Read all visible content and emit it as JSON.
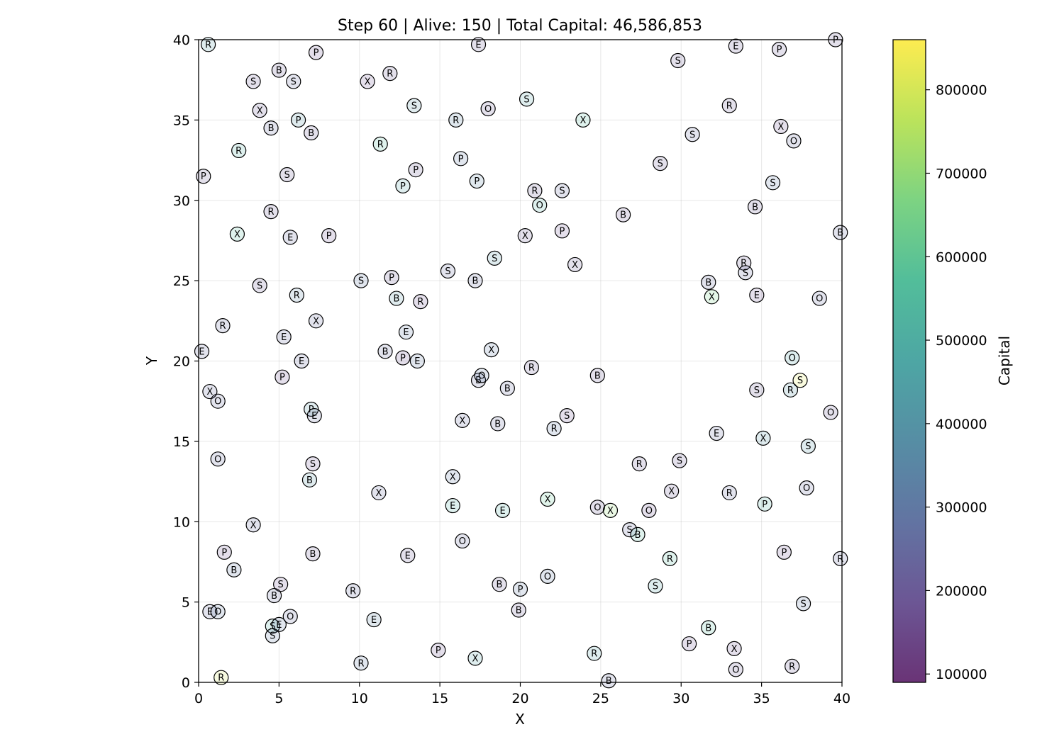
{
  "chart_data": {
    "type": "scatter",
    "title": "Step 60 | Alive: 150 | Total Capital: 46,586,853",
    "xlabel": "X",
    "ylabel": "Y",
    "xlim": [
      0,
      40
    ],
    "ylim": [
      0,
      40
    ],
    "xticks": [
      "0",
      "5",
      "10",
      "15",
      "20",
      "25",
      "30",
      "35",
      "40"
    ],
    "yticks": [
      "0",
      "5",
      "10",
      "15",
      "20",
      "25",
      "30",
      "35",
      "40"
    ],
    "grid": true,
    "colorbar": {
      "label": "Capital",
      "colormap": "viridis",
      "range": [
        90000,
        860000
      ],
      "ticks": [
        "100000",
        "200000",
        "300000",
        "400000",
        "500000",
        "600000",
        "700000",
        "800000"
      ],
      "tick_values": [
        100000,
        200000,
        300000,
        400000,
        500000,
        600000,
        700000,
        800000
      ]
    },
    "points": [
      {
        "x": 0.6,
        "y": 39.7,
        "label": "R",
        "capital": 420000
      },
      {
        "x": 7.3,
        "y": 39.2,
        "label": "P",
        "capital": 160000
      },
      {
        "x": 17.4,
        "y": 39.7,
        "label": "E",
        "capital": 200000
      },
      {
        "x": 33.4,
        "y": 39.6,
        "label": "E",
        "capital": 200000
      },
      {
        "x": 36.1,
        "y": 39.4,
        "label": "P",
        "capital": 200000
      },
      {
        "x": 39.6,
        "y": 40.0,
        "label": "P",
        "capital": 200000
      },
      {
        "x": 29.8,
        "y": 38.7,
        "label": "S",
        "capital": 200000
      },
      {
        "x": 5.0,
        "y": 38.1,
        "label": "B",
        "capital": 200000
      },
      {
        "x": 11.9,
        "y": 37.9,
        "label": "R",
        "capital": 200000
      },
      {
        "x": 3.4,
        "y": 37.4,
        "label": "S",
        "capital": 200000
      },
      {
        "x": 5.9,
        "y": 37.4,
        "label": "S",
        "capital": 250000
      },
      {
        "x": 10.5,
        "y": 37.4,
        "label": "X",
        "capital": 180000
      },
      {
        "x": 20.4,
        "y": 36.3,
        "label": "S",
        "capital": 450000
      },
      {
        "x": 13.4,
        "y": 35.9,
        "label": "S",
        "capital": 400000
      },
      {
        "x": 33.0,
        "y": 35.9,
        "label": "R",
        "capital": 200000
      },
      {
        "x": 18.0,
        "y": 35.7,
        "label": "O",
        "capital": 200000
      },
      {
        "x": 3.8,
        "y": 35.6,
        "label": "X",
        "capital": 200000
      },
      {
        "x": 16.0,
        "y": 35.0,
        "label": "R",
        "capital": 350000
      },
      {
        "x": 6.2,
        "y": 35.0,
        "label": "P",
        "capital": 400000
      },
      {
        "x": 23.9,
        "y": 35.0,
        "label": "X",
        "capital": 550000
      },
      {
        "x": 36.2,
        "y": 34.6,
        "label": "X",
        "capital": 180000
      },
      {
        "x": 4.5,
        "y": 34.5,
        "label": "B",
        "capital": 250000
      },
      {
        "x": 7.0,
        "y": 34.2,
        "label": "B",
        "capital": 200000
      },
      {
        "x": 30.7,
        "y": 34.1,
        "label": "S",
        "capital": 250000
      },
      {
        "x": 37.0,
        "y": 33.7,
        "label": "O",
        "capital": 250000
      },
      {
        "x": 11.3,
        "y": 33.5,
        "label": "R",
        "capital": 550000
      },
      {
        "x": 2.5,
        "y": 33.1,
        "label": "R",
        "capital": 500000
      },
      {
        "x": 16.3,
        "y": 32.6,
        "label": "P",
        "capital": 300000
      },
      {
        "x": 28.7,
        "y": 32.3,
        "label": "S",
        "capital": 200000
      },
      {
        "x": 13.5,
        "y": 31.9,
        "label": "P",
        "capital": 200000
      },
      {
        "x": 0.3,
        "y": 31.5,
        "label": "P",
        "capital": 200000
      },
      {
        "x": 5.5,
        "y": 31.6,
        "label": "S",
        "capital": 200000
      },
      {
        "x": 17.3,
        "y": 31.2,
        "label": "P",
        "capital": 350000
      },
      {
        "x": 35.7,
        "y": 31.1,
        "label": "S",
        "capital": 300000
      },
      {
        "x": 12.7,
        "y": 30.9,
        "label": "P",
        "capital": 450000
      },
      {
        "x": 20.9,
        "y": 30.6,
        "label": "R",
        "capital": 200000
      },
      {
        "x": 22.6,
        "y": 30.6,
        "label": "S",
        "capital": 250000
      },
      {
        "x": 21.2,
        "y": 29.7,
        "label": "O",
        "capital": 500000
      },
      {
        "x": 34.6,
        "y": 29.6,
        "label": "B",
        "capital": 200000
      },
      {
        "x": 4.5,
        "y": 29.3,
        "label": "R",
        "capital": 200000
      },
      {
        "x": 26.4,
        "y": 29.1,
        "label": "B",
        "capital": 180000
      },
      {
        "x": 39.9,
        "y": 28.0,
        "label": "B",
        "capital": 250000
      },
      {
        "x": 2.4,
        "y": 27.9,
        "label": "X",
        "capital": 550000
      },
      {
        "x": 22.6,
        "y": 28.1,
        "label": "P",
        "capital": 180000
      },
      {
        "x": 8.1,
        "y": 27.8,
        "label": "P",
        "capital": 180000
      },
      {
        "x": 5.7,
        "y": 27.7,
        "label": "E",
        "capital": 250000
      },
      {
        "x": 20.3,
        "y": 27.8,
        "label": "X",
        "capital": 200000
      },
      {
        "x": 18.4,
        "y": 26.4,
        "label": "S",
        "capital": 400000
      },
      {
        "x": 33.9,
        "y": 26.1,
        "label": "R",
        "capital": 200000
      },
      {
        "x": 23.4,
        "y": 26.0,
        "label": "X",
        "capital": 200000
      },
      {
        "x": 15.5,
        "y": 25.6,
        "label": "S",
        "capital": 250000
      },
      {
        "x": 34.0,
        "y": 25.5,
        "label": "S",
        "capital": 250000
      },
      {
        "x": 12.0,
        "y": 25.2,
        "label": "P",
        "capital": 200000
      },
      {
        "x": 17.2,
        "y": 25.0,
        "label": "B",
        "capital": 250000
      },
      {
        "x": 10.1,
        "y": 25.0,
        "label": "S",
        "capital": 300000
      },
      {
        "x": 31.7,
        "y": 24.9,
        "label": "B",
        "capital": 250000
      },
      {
        "x": 3.8,
        "y": 24.7,
        "label": "S",
        "capital": 200000
      },
      {
        "x": 34.7,
        "y": 24.1,
        "label": "E",
        "capital": 180000
      },
      {
        "x": 6.1,
        "y": 24.1,
        "label": "R",
        "capital": 350000
      },
      {
        "x": 31.9,
        "y": 24.0,
        "label": "X",
        "capital": 650000
      },
      {
        "x": 12.3,
        "y": 23.9,
        "label": "B",
        "capital": 400000
      },
      {
        "x": 38.6,
        "y": 23.9,
        "label": "O",
        "capital": 250000
      },
      {
        "x": 13.8,
        "y": 23.7,
        "label": "R",
        "capital": 180000
      },
      {
        "x": 7.3,
        "y": 22.5,
        "label": "X",
        "capital": 250000
      },
      {
        "x": 1.5,
        "y": 22.2,
        "label": "R",
        "capital": 250000
      },
      {
        "x": 12.9,
        "y": 21.8,
        "label": "E",
        "capital": 300000
      },
      {
        "x": 5.3,
        "y": 21.5,
        "label": "E",
        "capital": 250000
      },
      {
        "x": 0.2,
        "y": 20.6,
        "label": "E",
        "capital": 250000
      },
      {
        "x": 11.6,
        "y": 20.6,
        "label": "B",
        "capital": 250000
      },
      {
        "x": 18.2,
        "y": 20.7,
        "label": "X",
        "capital": 300000
      },
      {
        "x": 12.7,
        "y": 20.2,
        "label": "P",
        "capital": 180000
      },
      {
        "x": 6.4,
        "y": 20.0,
        "label": "E",
        "capital": 250000
      },
      {
        "x": 13.6,
        "y": 20.0,
        "label": "E",
        "capital": 300000
      },
      {
        "x": 36.9,
        "y": 20.2,
        "label": "O",
        "capital": 450000
      },
      {
        "x": 20.7,
        "y": 19.6,
        "label": "R",
        "capital": 200000
      },
      {
        "x": 5.2,
        "y": 19.0,
        "label": "P",
        "capital": 180000
      },
      {
        "x": 24.8,
        "y": 19.1,
        "label": "B",
        "capital": 200000
      },
      {
        "x": 17.4,
        "y": 18.8,
        "label": "B",
        "capital": 250000
      },
      {
        "x": 17.6,
        "y": 19.1,
        "label": "O",
        "capital": 300000
      },
      {
        "x": 37.4,
        "y": 18.8,
        "label": "S",
        "capital": 820000
      },
      {
        "x": 19.2,
        "y": 18.3,
        "label": "B",
        "capital": 250000
      },
      {
        "x": 0.7,
        "y": 18.1,
        "label": "X",
        "capital": 250000
      },
      {
        "x": 34.7,
        "y": 18.2,
        "label": "S",
        "capital": 200000
      },
      {
        "x": 36.8,
        "y": 18.2,
        "label": "R",
        "capital": 400000
      },
      {
        "x": 1.2,
        "y": 17.5,
        "label": "O",
        "capital": 250000
      },
      {
        "x": 7.0,
        "y": 17.0,
        "label": "P",
        "capital": 400000
      },
      {
        "x": 39.3,
        "y": 16.8,
        "label": "O",
        "capital": 200000
      },
      {
        "x": 7.2,
        "y": 16.6,
        "label": "E",
        "capital": 250000
      },
      {
        "x": 22.9,
        "y": 16.6,
        "label": "S",
        "capital": 180000
      },
      {
        "x": 16.4,
        "y": 16.3,
        "label": "X",
        "capital": 250000
      },
      {
        "x": 18.6,
        "y": 16.1,
        "label": "B",
        "capital": 250000
      },
      {
        "x": 22.1,
        "y": 15.8,
        "label": "R",
        "capital": 300000
      },
      {
        "x": 32.2,
        "y": 15.5,
        "label": "E",
        "capital": 250000
      },
      {
        "x": 35.1,
        "y": 15.2,
        "label": "X",
        "capital": 400000
      },
      {
        "x": 37.9,
        "y": 14.7,
        "label": "S",
        "capital": 400000
      },
      {
        "x": 1.2,
        "y": 13.9,
        "label": "O",
        "capital": 250000
      },
      {
        "x": 29.9,
        "y": 13.8,
        "label": "S",
        "capital": 200000
      },
      {
        "x": 7.1,
        "y": 13.6,
        "label": "S",
        "capital": 180000
      },
      {
        "x": 27.4,
        "y": 13.6,
        "label": "R",
        "capital": 200000
      },
      {
        "x": 15.8,
        "y": 12.8,
        "label": "X",
        "capital": 300000
      },
      {
        "x": 6.9,
        "y": 12.6,
        "label": "B",
        "capital": 400000
      },
      {
        "x": 37.8,
        "y": 12.1,
        "label": "O",
        "capital": 250000
      },
      {
        "x": 29.4,
        "y": 11.9,
        "label": "X",
        "capital": 200000
      },
      {
        "x": 33.0,
        "y": 11.8,
        "label": "R",
        "capital": 250000
      },
      {
        "x": 11.2,
        "y": 11.8,
        "label": "X",
        "capital": 250000
      },
      {
        "x": 21.7,
        "y": 11.4,
        "label": "X",
        "capital": 600000
      },
      {
        "x": 35.2,
        "y": 11.1,
        "label": "P",
        "capital": 500000
      },
      {
        "x": 15.8,
        "y": 11.0,
        "label": "E",
        "capital": 500000
      },
      {
        "x": 24.8,
        "y": 10.9,
        "label": "O",
        "capital": 200000
      },
      {
        "x": 25.6,
        "y": 10.7,
        "label": "X",
        "capital": 700000
      },
      {
        "x": 18.9,
        "y": 10.7,
        "label": "E",
        "capital": 500000
      },
      {
        "x": 28.0,
        "y": 10.7,
        "label": "O",
        "capital": 180000
      },
      {
        "x": 3.4,
        "y": 9.8,
        "label": "X",
        "capital": 250000
      },
      {
        "x": 26.8,
        "y": 9.5,
        "label": "S",
        "capital": 250000
      },
      {
        "x": 27.3,
        "y": 9.2,
        "label": "B",
        "capital": 550000
      },
      {
        "x": 16.4,
        "y": 8.8,
        "label": "O",
        "capital": 250000
      },
      {
        "x": 1.6,
        "y": 8.1,
        "label": "P",
        "capital": 180000
      },
      {
        "x": 7.1,
        "y": 8.0,
        "label": "B",
        "capital": 200000
      },
      {
        "x": 13.0,
        "y": 7.9,
        "label": "E",
        "capital": 200000
      },
      {
        "x": 36.4,
        "y": 8.1,
        "label": "P",
        "capital": 180000
      },
      {
        "x": 29.3,
        "y": 7.7,
        "label": "R",
        "capital": 550000
      },
      {
        "x": 39.9,
        "y": 7.7,
        "label": "R",
        "capital": 250000
      },
      {
        "x": 2.2,
        "y": 7.0,
        "label": "B",
        "capital": 300000
      },
      {
        "x": 21.7,
        "y": 6.6,
        "label": "O",
        "capital": 300000
      },
      {
        "x": 5.1,
        "y": 6.1,
        "label": "S",
        "capital": 180000
      },
      {
        "x": 18.7,
        "y": 6.1,
        "label": "B",
        "capital": 200000
      },
      {
        "x": 28.4,
        "y": 6.0,
        "label": "S",
        "capital": 450000
      },
      {
        "x": 20.0,
        "y": 5.8,
        "label": "P",
        "capital": 300000
      },
      {
        "x": 9.6,
        "y": 5.7,
        "label": "R",
        "capital": 250000
      },
      {
        "x": 4.7,
        "y": 5.4,
        "label": "B",
        "capital": 250000
      },
      {
        "x": 37.6,
        "y": 4.9,
        "label": "S",
        "capital": 300000
      },
      {
        "x": 19.9,
        "y": 4.5,
        "label": "B",
        "capital": 200000
      },
      {
        "x": 0.7,
        "y": 4.4,
        "label": "E",
        "capital": 250000
      },
      {
        "x": 1.2,
        "y": 4.4,
        "label": "O",
        "capital": 300000
      },
      {
        "x": 5.7,
        "y": 4.1,
        "label": "O",
        "capital": 250000
      },
      {
        "x": 10.9,
        "y": 3.9,
        "label": "E",
        "capital": 350000
      },
      {
        "x": 4.6,
        "y": 3.5,
        "label": "S",
        "capital": 500000
      },
      {
        "x": 5.0,
        "y": 3.6,
        "label": "E",
        "capital": 300000
      },
      {
        "x": 31.7,
        "y": 3.4,
        "label": "B",
        "capital": 550000
      },
      {
        "x": 4.6,
        "y": 2.9,
        "label": "S",
        "capital": 300000
      },
      {
        "x": 30.5,
        "y": 2.4,
        "label": "P",
        "capital": 180000
      },
      {
        "x": 33.3,
        "y": 2.1,
        "label": "X",
        "capital": 180000
      },
      {
        "x": 14.9,
        "y": 2.0,
        "label": "P",
        "capital": 180000
      },
      {
        "x": 24.6,
        "y": 1.8,
        "label": "R",
        "capital": 450000
      },
      {
        "x": 17.2,
        "y": 1.5,
        "label": "X",
        "capital": 450000
      },
      {
        "x": 10.1,
        "y": 1.2,
        "label": "R",
        "capital": 300000
      },
      {
        "x": 36.9,
        "y": 1.0,
        "label": "R",
        "capital": 200000
      },
      {
        "x": 33.4,
        "y": 0.8,
        "label": "O",
        "capital": 200000
      },
      {
        "x": 1.4,
        "y": 0.3,
        "label": "R",
        "capital": 800000
      },
      {
        "x": 25.5,
        "y": 0.1,
        "label": "B",
        "capital": 250000
      }
    ]
  }
}
